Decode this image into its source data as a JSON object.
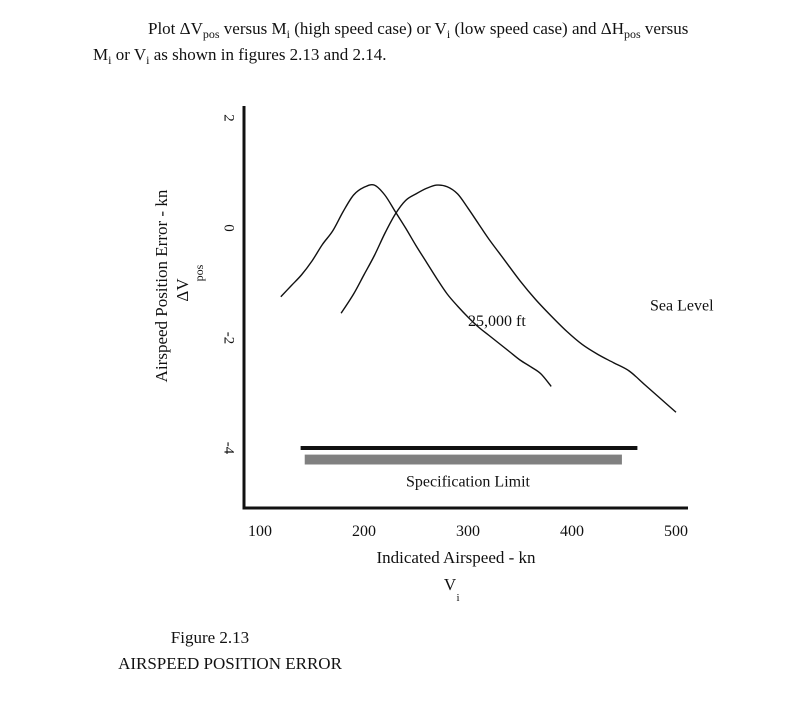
{
  "intro": {
    "line1_a": "Plot ΔV",
    "line1_sub1": "pos",
    "line1_b": " versus M",
    "line1_sub2": "i",
    "line1_c": " (high speed case) or V",
    "line1_sub3": "i",
    "line1_d": " (low speed case) and ΔH",
    "line1_sub4": "pos",
    "line1_e": " versus",
    "line2_a": "M",
    "line2_sub1": "i",
    "line2_b": " or V",
    "line2_sub2": "i",
    "line2_c": " as shown in figures 2.13 and 2.14."
  },
  "chart_data": {
    "type": "line",
    "xlabel": "Indicated Airspeed - kn",
    "xlabel_symbol": "V",
    "xlabel_symbol_sub": "i",
    "ylabel": "Airspeed Position Error - kn",
    "ylabel_symbol": "ΔV",
    "ylabel_symbol_sub": "pos",
    "xlim": [
      88,
      512
    ],
    "ylim": [
      -5.4,
      2.2
    ],
    "x_ticks": [
      "100",
      "200",
      "300",
      "400",
      "500"
    ],
    "y_ticks": [
      "2",
      "0",
      "-2",
      "-4"
    ],
    "grid": false,
    "series": [
      {
        "name": "Sea Level",
        "x": [
          178,
          190,
          200,
          210,
          220,
          230,
          240,
          250,
          260,
          270,
          280,
          290,
          300,
          310,
          320,
          335,
          350,
          365,
          380,
          395,
          410,
          425,
          440,
          455,
          470,
          485,
          500
        ],
        "y": [
          -1.55,
          -1.2,
          -0.85,
          -0.5,
          -0.1,
          0.25,
          0.5,
          0.62,
          0.72,
          0.78,
          0.75,
          0.62,
          0.36,
          0.08,
          -0.2,
          -0.58,
          -0.96,
          -1.3,
          -1.6,
          -1.88,
          -2.12,
          -2.3,
          -2.45,
          -2.6,
          -2.85,
          -3.1,
          -3.35
        ]
      },
      {
        "name": "25,000 ft",
        "x": [
          120,
          130,
          140,
          150,
          160,
          170,
          180,
          190,
          200,
          210,
          220,
          230,
          240,
          250,
          260,
          270,
          280,
          290,
          300,
          310,
          320,
          330,
          340,
          350,
          360,
          370,
          380
        ],
        "y": [
          -1.25,
          -1.05,
          -0.85,
          -0.6,
          -0.3,
          -0.05,
          0.3,
          0.6,
          0.74,
          0.78,
          0.6,
          0.3,
          0.0,
          -0.32,
          -0.62,
          -0.92,
          -1.2,
          -1.42,
          -1.62,
          -1.8,
          -1.95,
          -2.1,
          -2.25,
          -2.4,
          -2.52,
          -2.65,
          -2.88
        ]
      }
    ],
    "reference_line": {
      "value": -4.0,
      "x_range": [
        140,
        460
      ]
    },
    "reference_band": {
      "y_range": [
        -4.12,
        -4.3
      ],
      "x_range": [
        143,
        448
      ]
    },
    "annotations": [
      {
        "text": "Sea Level",
        "x": 475,
        "y": -1.5
      },
      {
        "text": "25,000 ft",
        "x": 300,
        "y": -1.78
      },
      {
        "text": "Specification Limit",
        "x": 300,
        "y": -4.7
      }
    ],
    "colors": {
      "line": "#111111",
      "band": "#808080"
    }
  },
  "figure": {
    "number": "Figure 2.13",
    "title": "AIRSPEED POSITION ERROR"
  }
}
